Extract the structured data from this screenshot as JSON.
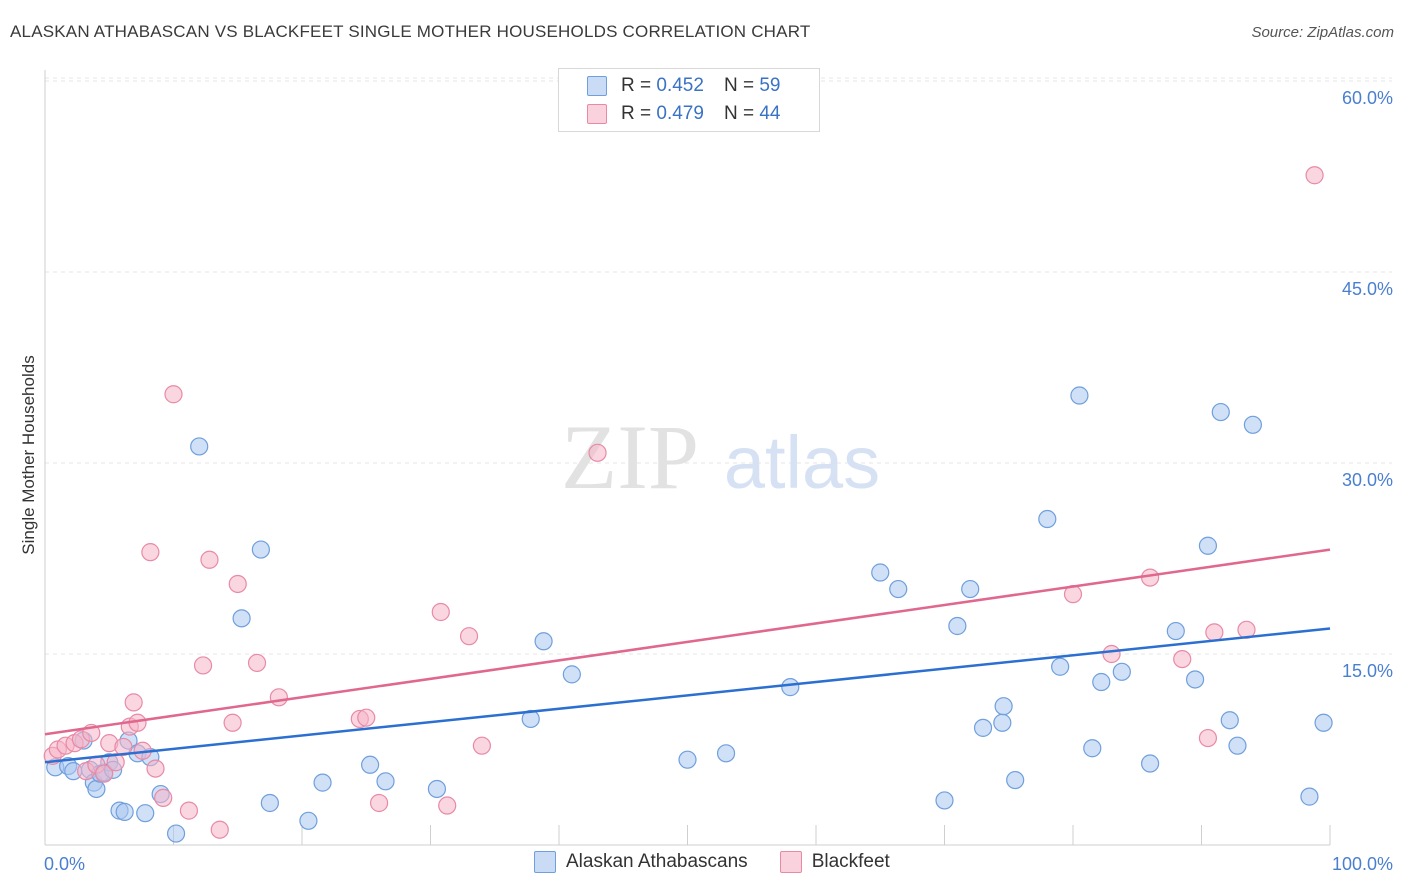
{
  "title": "ALASKAN ATHABASCAN VS BLACKFEET SINGLE MOTHER HOUSEHOLDS CORRELATION CHART",
  "source": "Source: ZipAtlas.com",
  "watermark": {
    "zip": "ZIP",
    "atlas": "atlas"
  },
  "legend": {
    "rows": [
      {
        "r_label": "R =",
        "r_value": "0.452",
        "n_label": "N =",
        "n_value": "59",
        "color": "#a9c6f0"
      },
      {
        "r_label": "R =",
        "r_value": "0.479",
        "n_label": "N =",
        "n_value": "44",
        "color": "#f5b5c8"
      }
    ]
  },
  "chart_data": {
    "type": "scatter",
    "xlabel": "",
    "ylabel": "Single Mother Households",
    "xlim": [
      0,
      100
    ],
    "ylim": [
      0,
      61
    ],
    "x_tick_labels": [
      {
        "v": 0,
        "label": "0.0%"
      },
      {
        "v": 100,
        "label": "100.0%"
      }
    ],
    "y_tick_labels": [
      {
        "v": 15,
        "label": "15.0%"
      },
      {
        "v": 30,
        "label": "30.0%"
      },
      {
        "v": 45,
        "label": "45.0%"
      },
      {
        "v": 60,
        "label": "60.0%"
      }
    ],
    "series": [
      {
        "name": "Alaskan Athabascans",
        "color": "#a9c6f0",
        "stroke": "#6f9fdc",
        "line_color": "#2b6fd1",
        "trend": [
          [
            0,
            6.5
          ],
          [
            100,
            17.0
          ]
        ],
        "points": [
          [
            0.8,
            6.1
          ],
          [
            1.8,
            6.2
          ],
          [
            2.2,
            5.8
          ],
          [
            3.0,
            8.2
          ],
          [
            3.5,
            5.9
          ],
          [
            3.8,
            4.9
          ],
          [
            4.0,
            4.4
          ],
          [
            4.3,
            5.6
          ],
          [
            4.6,
            5.7
          ],
          [
            5.0,
            6.5
          ],
          [
            5.3,
            5.9
          ],
          [
            5.8,
            2.7
          ],
          [
            6.2,
            2.6
          ],
          [
            6.5,
            8.2
          ],
          [
            7.2,
            7.2
          ],
          [
            7.8,
            2.5
          ],
          [
            8.2,
            6.9
          ],
          [
            9.0,
            4.0
          ],
          [
            10.2,
            0.9
          ],
          [
            12.0,
            31.3
          ],
          [
            15.3,
            17.8
          ],
          [
            16.8,
            23.2
          ],
          [
            17.5,
            3.3
          ],
          [
            20.5,
            1.9
          ],
          [
            21.6,
            4.9
          ],
          [
            25.3,
            6.3
          ],
          [
            26.5,
            5.0
          ],
          [
            30.5,
            4.4
          ],
          [
            37.8,
            9.9
          ],
          [
            38.8,
            16.0
          ],
          [
            41.0,
            13.4
          ],
          [
            50.0,
            6.7
          ],
          [
            53.0,
            7.2
          ],
          [
            58.0,
            12.4
          ],
          [
            65.0,
            21.4
          ],
          [
            66.4,
            20.1
          ],
          [
            70.0,
            3.5
          ],
          [
            71.0,
            17.2
          ],
          [
            72.0,
            20.1
          ],
          [
            73.0,
            9.2
          ],
          [
            74.5,
            9.6
          ],
          [
            74.6,
            10.9
          ],
          [
            75.5,
            5.1
          ],
          [
            78.0,
            25.6
          ],
          [
            79.0,
            14.0
          ],
          [
            80.5,
            35.3
          ],
          [
            81.5,
            7.6
          ],
          [
            82.2,
            12.8
          ],
          [
            83.8,
            13.6
          ],
          [
            86.0,
            6.4
          ],
          [
            88.0,
            16.8
          ],
          [
            89.5,
            13.0
          ],
          [
            90.5,
            23.5
          ],
          [
            91.5,
            34.0
          ],
          [
            92.2,
            9.8
          ],
          [
            92.8,
            7.8
          ],
          [
            94.0,
            33.0
          ],
          [
            98.4,
            3.8
          ],
          [
            99.5,
            9.6
          ]
        ]
      },
      {
        "name": "Blackfeet",
        "color": "#f5b5c8",
        "stroke": "#e88aa6",
        "line_color": "#e0678d",
        "trend": [
          [
            0,
            8.7
          ],
          [
            100,
            23.2
          ]
        ],
        "points": [
          [
            0.6,
            7.0
          ],
          [
            1.0,
            7.5
          ],
          [
            1.6,
            7.8
          ],
          [
            2.3,
            8.0
          ],
          [
            2.8,
            8.3
          ],
          [
            3.2,
            5.8
          ],
          [
            3.6,
            8.8
          ],
          [
            4.0,
            6.3
          ],
          [
            4.6,
            5.6
          ],
          [
            5.0,
            8.0
          ],
          [
            5.5,
            6.5
          ],
          [
            6.1,
            7.7
          ],
          [
            6.6,
            9.3
          ],
          [
            6.9,
            11.2
          ],
          [
            7.2,
            9.6
          ],
          [
            7.6,
            7.4
          ],
          [
            8.2,
            23.0
          ],
          [
            8.6,
            6.0
          ],
          [
            9.2,
            3.7
          ],
          [
            10.0,
            35.4
          ],
          [
            11.2,
            2.7
          ],
          [
            12.3,
            14.1
          ],
          [
            12.8,
            22.4
          ],
          [
            13.6,
            1.2
          ],
          [
            14.6,
            9.6
          ],
          [
            15.0,
            20.5
          ],
          [
            16.5,
            14.3
          ],
          [
            18.2,
            11.6
          ],
          [
            24.5,
            9.9
          ],
          [
            25.0,
            10.0
          ],
          [
            26.0,
            3.3
          ],
          [
            30.8,
            18.3
          ],
          [
            31.3,
            3.1
          ],
          [
            33.0,
            16.4
          ],
          [
            34.0,
            7.8
          ],
          [
            43.0,
            30.8
          ],
          [
            80.0,
            19.7
          ],
          [
            83.0,
            15.0
          ],
          [
            86.0,
            21.0
          ],
          [
            88.5,
            14.6
          ],
          [
            90.5,
            8.4
          ],
          [
            91.0,
            16.7
          ],
          [
            93.5,
            16.9
          ],
          [
            98.8,
            52.6
          ]
        ]
      }
    ]
  }
}
